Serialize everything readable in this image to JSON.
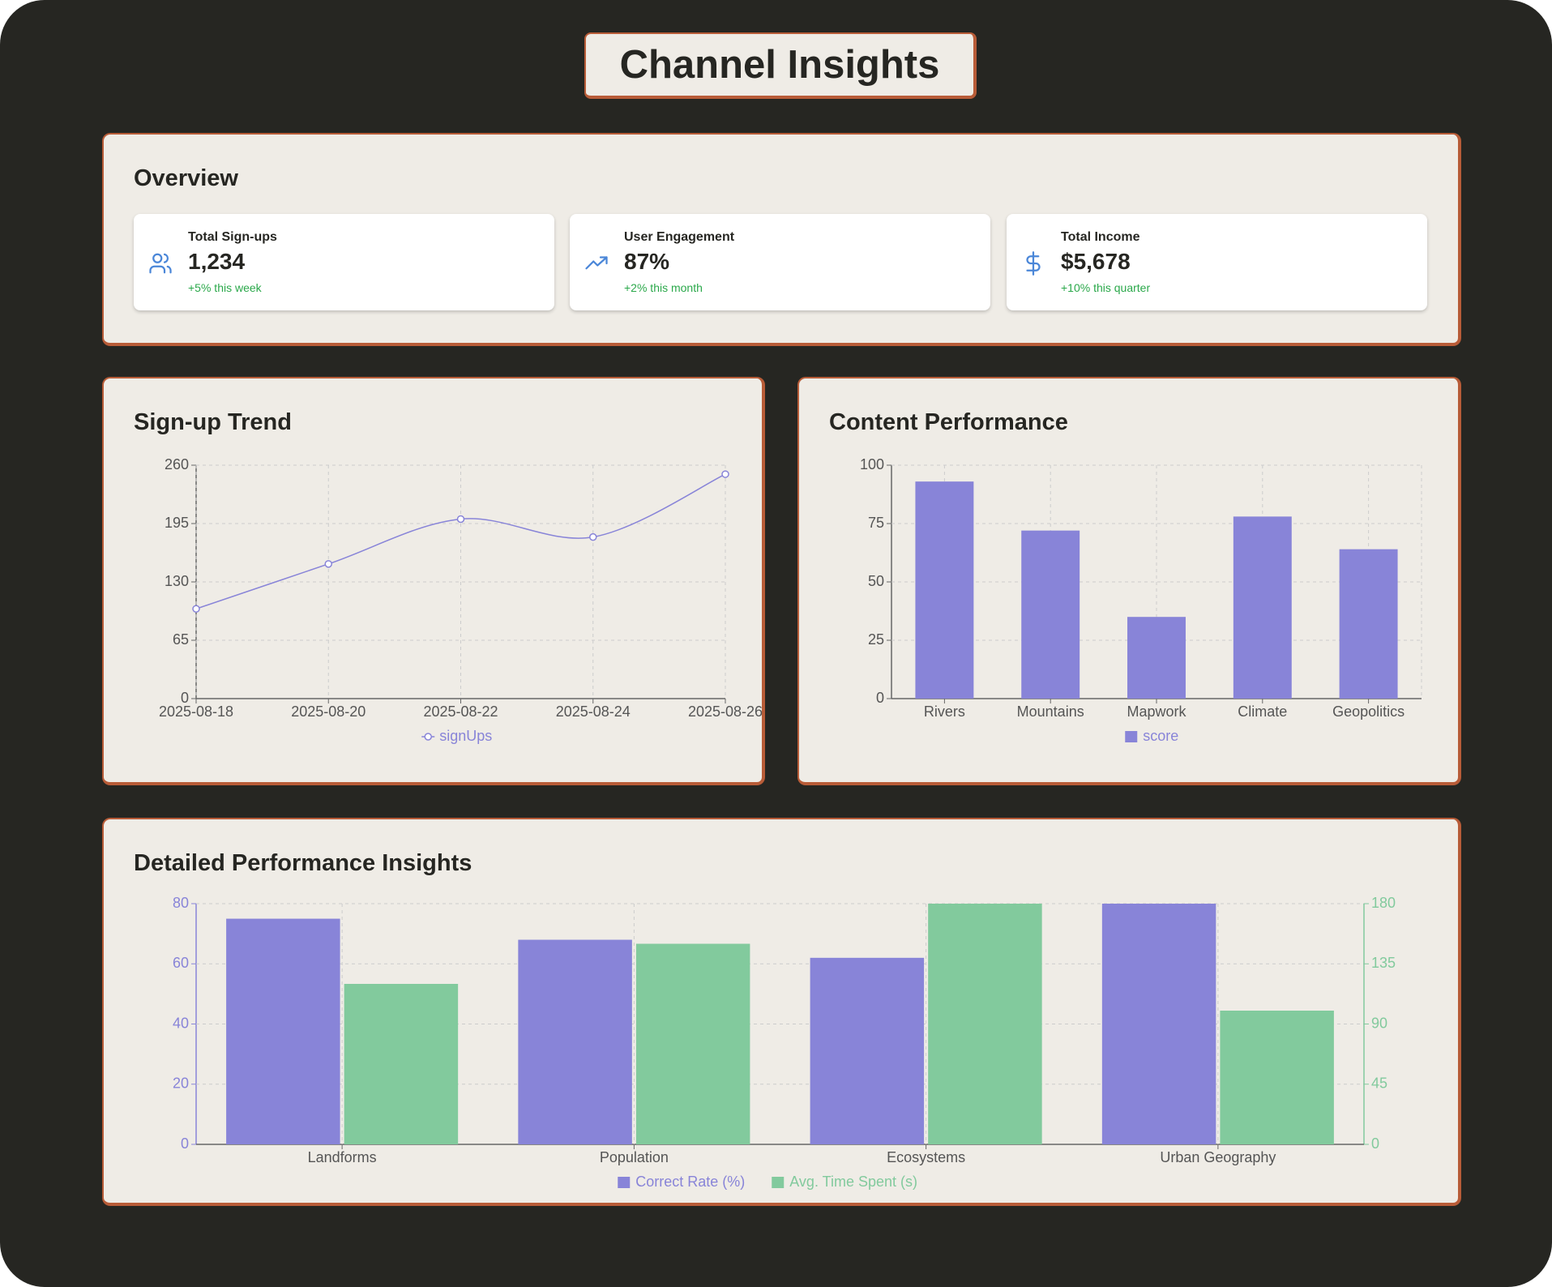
{
  "header": {
    "title": "Channel Insights"
  },
  "overview": {
    "title": "Overview",
    "cards": [
      {
        "label": "Total Sign-ups",
        "value": "1,234",
        "change": "+5% this week"
      },
      {
        "label": "User Engagement",
        "value": "87%",
        "change": "+2% this month"
      },
      {
        "label": "Total Income",
        "value": "$5,678",
        "change": "+10% this quarter"
      }
    ]
  },
  "chart_data": [
    {
      "type": "line",
      "title": "Sign-up Trend",
      "x": [
        "2025-08-18",
        "2025-08-20",
        "2025-08-22",
        "2025-08-24",
        "2025-08-26"
      ],
      "series": [
        {
          "name": "signUps",
          "color": "#8884d8",
          "values": [
            100,
            150,
            200,
            180,
            250
          ]
        }
      ],
      "xlim": [
        "2025-08-18",
        "2025-08-26"
      ],
      "xticks": [
        "2025-08-18",
        "2025-08-20",
        "2025-08-22",
        "2025-08-24",
        "2025-08-26"
      ],
      "ylim": [
        0,
        260
      ],
      "yticks": [
        0,
        65,
        130,
        195,
        260
      ],
      "grid": true
    },
    {
      "type": "bar",
      "title": "Content Performance",
      "categories": [
        "Rivers",
        "Mountains",
        "Mapwork",
        "Climate",
        "Geopolitics"
      ],
      "series": [
        {
          "name": "score",
          "color": "#8884d8",
          "values": [
            93,
            72,
            35,
            78,
            64
          ]
        }
      ],
      "ylim": [
        0,
        100
      ],
      "yticks": [
        0,
        25,
        50,
        75,
        100
      ],
      "grid": true
    },
    {
      "type": "bar",
      "title": "Detailed Performance Insights",
      "categories": [
        "Landforms",
        "Population",
        "Ecosystems",
        "Urban Geography"
      ],
      "series": [
        {
          "name": "Correct Rate (%)",
          "color": "#8884d8",
          "values": [
            75,
            68,
            62,
            80
          ]
        },
        {
          "name": "Avg. Time Spent (s)",
          "color": "#82ca9d",
          "values": [
            120,
            150,
            180,
            100
          ],
          "axis": "y2"
        }
      ],
      "ylim": [
        0,
        80
      ],
      "yticks": [
        0,
        20,
        40,
        60,
        80
      ],
      "y2lim": [
        0,
        180
      ],
      "y2ticks": [
        0,
        45,
        90,
        135,
        180
      ],
      "grid": true
    }
  ]
}
